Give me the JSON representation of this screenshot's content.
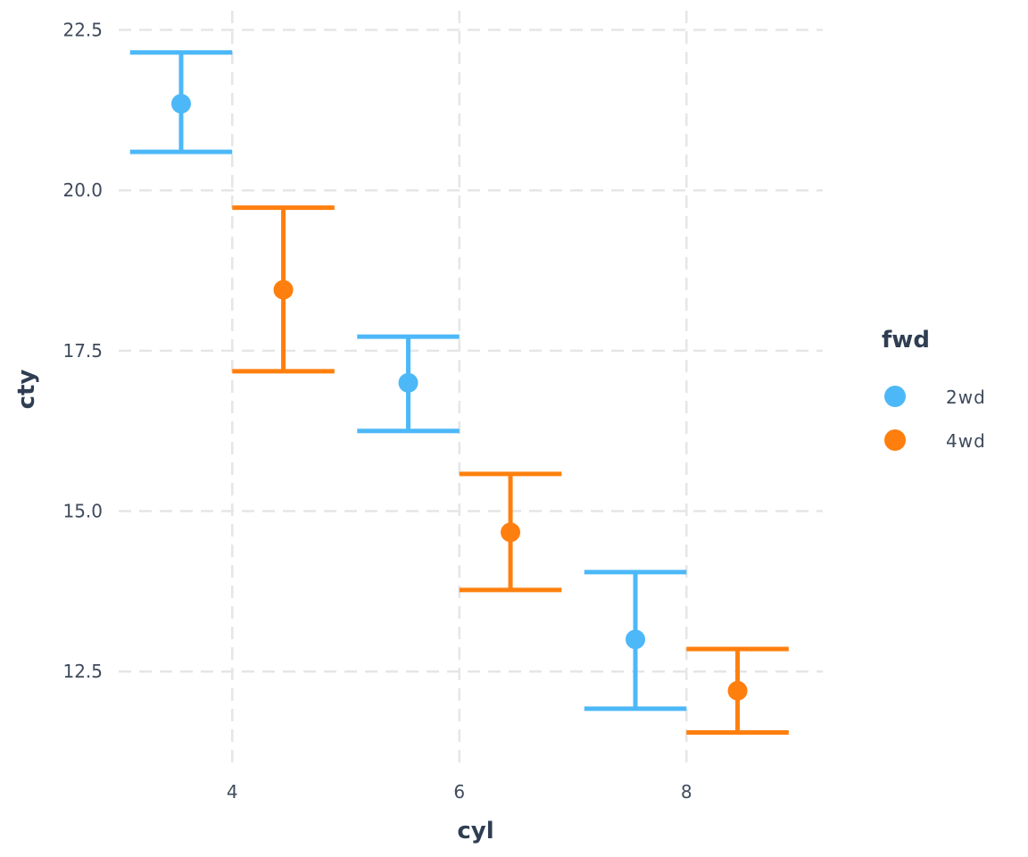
{
  "chart_data": {
    "type": "errorbar",
    "xlabel": "cyl",
    "ylabel": "cty",
    "x_ticks": [
      4,
      6,
      8
    ],
    "y_ticks": [
      "12.5",
      "15.0",
      "17.5",
      "20.0",
      "22.5"
    ],
    "xlim": [
      3.0,
      9.2
    ],
    "ylim": [
      11.0,
      22.8
    ],
    "grid": true,
    "legend": {
      "title": "fwd",
      "position": "right",
      "entries": [
        {
          "label": "2wd",
          "color": "#4db8f8"
        },
        {
          "label": "4wd",
          "color": "#ff7f0e"
        }
      ]
    },
    "dodge_offset": 0.45,
    "cap_half_width": 0.45,
    "series": [
      {
        "name": "2wd",
        "color": "#4db8f8",
        "points": [
          {
            "cyl": 4,
            "mean": 21.35,
            "lower": 20.6,
            "upper": 22.15
          },
          {
            "cyl": 6,
            "mean": 17.0,
            "lower": 16.25,
            "upper": 17.72
          },
          {
            "cyl": 8,
            "mean": 13.0,
            "lower": 11.92,
            "upper": 14.05
          }
        ]
      },
      {
        "name": "4wd",
        "color": "#ff7f0e",
        "points": [
          {
            "cyl": 4,
            "mean": 18.45,
            "lower": 17.18,
            "upper": 19.73
          },
          {
            "cyl": 6,
            "mean": 14.67,
            "lower": 13.77,
            "upper": 15.58
          },
          {
            "cyl": 8,
            "mean": 12.2,
            "lower": 11.55,
            "upper": 12.85
          }
        ]
      }
    ]
  }
}
